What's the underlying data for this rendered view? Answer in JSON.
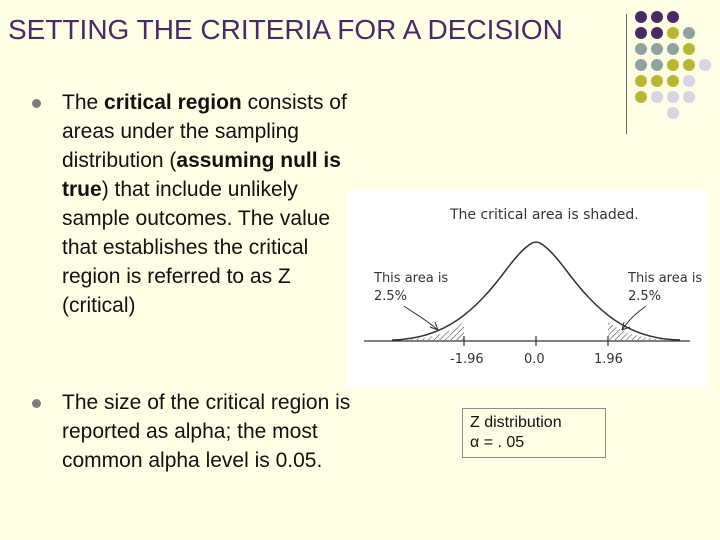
{
  "slide": {
    "title": "SETTING THE CRITERIA FOR A DECISION",
    "bullets": [
      {
        "parts": [
          "The ",
          "critical region",
          " consists of areas under the sampling distribution (",
          "assuming null is true",
          ") that include unlikely sample outcomes. The value that establishes the critical region is referred to as Z (critical)"
        ]
      },
      {
        "text": "The size of the critical region is reported as alpha; the most common alpha level is 0.05."
      }
    ]
  },
  "figure": {
    "caption": "The critical area is shaded.",
    "left_label": [
      "This area is",
      "2.5%"
    ],
    "right_label": [
      "This area is",
      "2.5%"
    ],
    "ticks": [
      "-1.96",
      "0.0",
      "1.96"
    ]
  },
  "zbox": {
    "line1": "Z distribution",
    "line2": "α = . 05"
  },
  "colors": {
    "title": "#4b2966",
    "background": "#ffffe6",
    "dot_purple": "#4b2966",
    "dot_teal": "#8ea3a0",
    "dot_olive": "#b9b630",
    "dot_lavender": "#d6d6e6"
  }
}
